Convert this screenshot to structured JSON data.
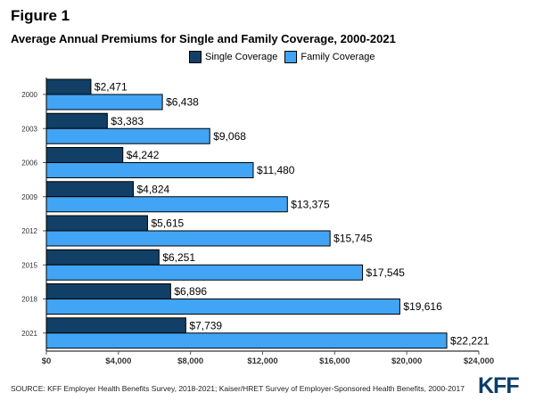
{
  "figure_label": "Figure 1",
  "source_note": "SOURCE: KFF Employer Health Benefits Survey, 2018-2021; Kaiser/HRET Survey of Employer-Sponsored Health Benefits, 2000-2017",
  "logo_text": "KFF",
  "chart_data": {
    "type": "bar",
    "orientation": "horizontal",
    "title": "Average Annual Premiums for Single and Family Coverage, 2000-2021",
    "categories": [
      "2000",
      "2003",
      "2006",
      "2009",
      "2012",
      "2015",
      "2018",
      "2021"
    ],
    "series": [
      {
        "name": "Single Coverage",
        "color": "#123f65",
        "values": [
          2471,
          3383,
          4242,
          4824,
          5615,
          6251,
          6896,
          7739
        ],
        "labels": [
          "$2,471",
          "$3,383",
          "$4,242",
          "$4,824",
          "$5,615",
          "$6,251",
          "$6,896",
          "$7,739"
        ]
      },
      {
        "name": "Family Coverage",
        "color": "#41a4f5",
        "values": [
          6438,
          9068,
          11480,
          13375,
          15745,
          17545,
          19616,
          22221
        ],
        "labels": [
          "$6,438",
          "$9,068",
          "$11,480",
          "$13,375",
          "$15,745",
          "$17,545",
          "$19,616",
          "$22,221"
        ]
      }
    ],
    "xlim": [
      0,
      24000
    ],
    "x_ticks": [
      0,
      4000,
      8000,
      12000,
      16000,
      20000,
      24000
    ],
    "x_tick_labels": [
      "$0",
      "$4,000",
      "$8,000",
      "$12,000",
      "$16,000",
      "$20,000",
      "$24,000"
    ],
    "grid": false,
    "legend_position": "top"
  }
}
